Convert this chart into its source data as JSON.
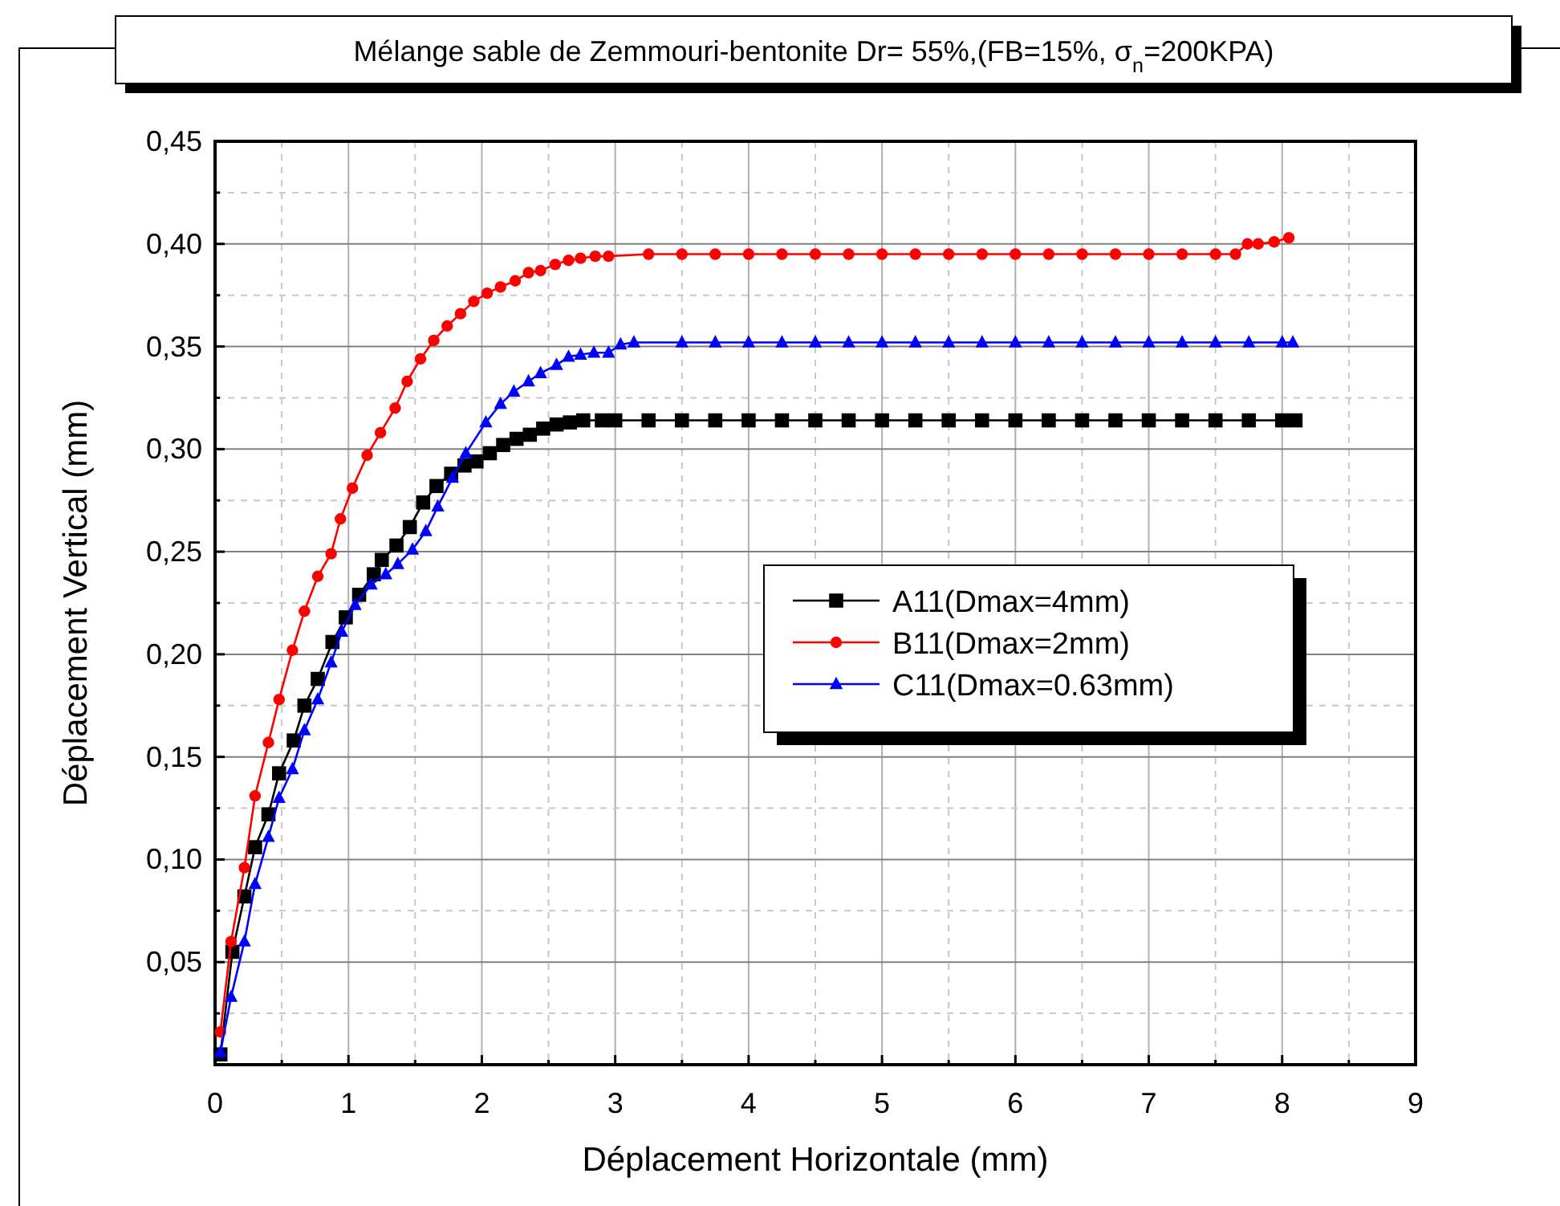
{
  "chart_data": {
    "type": "line",
    "title": "Mélange sable de Zemmouri-bentonite Dr= 55%,(FB=15%, σ$_{n}$=200KPA)",
    "xlabel": "Déplacement Horizontale (mm)",
    "ylabel": "Déplacement Vertical (mm)",
    "xlim": [
      0,
      9
    ],
    "ylim": [
      0,
      0.45
    ],
    "xticks": [
      0,
      {
        "value": 0.5,
        "label": null
      },
      1,
      {
        "value": 1.5,
        "label": null
      },
      2,
      {
        "value": 2.5,
        "label": null
      },
      3,
      {
        "value": 3.5,
        "label": null
      },
      4,
      {
        "value": 4.5,
        "label": null
      },
      5,
      {
        "value": 5.5,
        "label": null
      },
      6,
      {
        "value": 6.5,
        "label": null
      },
      7,
      {
        "value": 7.5,
        "label": null
      },
      8,
      {
        "value": 8.5,
        "label": null
      },
      9
    ],
    "yticks": [
      {
        "value": 0.025,
        "label": null
      },
      {
        "value": 0.05,
        "label": "0,05"
      },
      {
        "value": 0.075,
        "label": null
      },
      {
        "value": 0.1,
        "label": "0,10"
      },
      {
        "value": 0.125,
        "label": null
      },
      {
        "value": 0.15,
        "label": "0,15"
      },
      {
        "value": 0.175,
        "label": null
      },
      {
        "value": 0.2,
        "label": "0,20"
      },
      {
        "value": 0.225,
        "label": null
      },
      {
        "value": 0.25,
        "label": "0,25"
      },
      {
        "value": 0.275,
        "label": null
      },
      {
        "value": 0.3,
        "label": "0,30"
      },
      {
        "value": 0.325,
        "label": null
      },
      {
        "value": 0.35,
        "label": "0,35"
      },
      {
        "value": 0.375,
        "label": null
      },
      {
        "value": 0.4,
        "label": "0,40"
      },
      {
        "value": 0.425,
        "label": null
      },
      {
        "value": 0.45,
        "label": "0,45"
      }
    ],
    "grid": true,
    "legend": "right",
    "line_style": "solid",
    "series": [
      {
        "name": "A11(Dmax=4mm)",
        "color": "#000000",
        "marker": "square",
        "x": [
          0.04,
          0.13,
          0.22,
          0.3,
          0.4,
          0.48,
          0.59,
          0.67,
          0.77,
          0.88,
          0.98,
          1.08,
          1.19,
          1.25,
          1.36,
          1.46,
          1.56,
          1.66,
          1.77,
          1.87,
          1.96,
          2.06,
          2.16,
          2.26,
          2.36,
          2.46,
          2.56,
          2.66,
          2.76,
          2.9,
          3.0,
          3.25,
          3.5,
          3.75,
          4.0,
          4.25,
          4.5,
          4.75,
          5.0,
          5.25,
          5.5,
          5.75,
          6.0,
          6.25,
          6.5,
          6.75,
          7.0,
          7.25,
          7.5,
          7.75,
          8.0,
          8.1
        ],
        "values": [
          0.005,
          0.055,
          0.082,
          0.106,
          0.122,
          0.142,
          0.158,
          0.175,
          0.188,
          0.206,
          0.218,
          0.229,
          0.239,
          0.246,
          0.253,
          0.262,
          0.274,
          0.282,
          0.288,
          0.292,
          0.294,
          0.298,
          0.302,
          0.305,
          0.307,
          0.31,
          0.312,
          0.313,
          0.314,
          0.314,
          0.314,
          0.314,
          0.314,
          0.314,
          0.314,
          0.314,
          0.314,
          0.314,
          0.314,
          0.314,
          0.314,
          0.314,
          0.314,
          0.314,
          0.314,
          0.314,
          0.314,
          0.314,
          0.314,
          0.314,
          0.314,
          0.314
        ]
      },
      {
        "name": "B11(Dmax=2mm)",
        "color": "#ff0000",
        "marker": "circle",
        "x": [
          0.04,
          0.12,
          0.22,
          0.3,
          0.4,
          0.48,
          0.58,
          0.67,
          0.77,
          0.87,
          0.94,
          1.03,
          1.14,
          1.24,
          1.35,
          1.44,
          1.54,
          1.64,
          1.74,
          1.84,
          1.94,
          2.04,
          2.14,
          2.25,
          2.35,
          2.44,
          2.55,
          2.65,
          2.74,
          2.85,
          2.95,
          3.25,
          3.5,
          3.75,
          4.0,
          4.25,
          4.5,
          4.75,
          5.0,
          5.25,
          5.5,
          5.75,
          6.0,
          6.25,
          6.5,
          6.75,
          7.0,
          7.25,
          7.5,
          7.65,
          7.74,
          7.82,
          7.94,
          8.05
        ],
        "values": [
          0.016,
          0.06,
          0.096,
          0.131,
          0.157,
          0.178,
          0.202,
          0.221,
          0.238,
          0.249,
          0.266,
          0.281,
          0.297,
          0.308,
          0.32,
          0.333,
          0.344,
          0.353,
          0.36,
          0.366,
          0.372,
          0.376,
          0.379,
          0.382,
          0.386,
          0.387,
          0.39,
          0.392,
          0.393,
          0.394,
          0.394,
          0.395,
          0.395,
          0.395,
          0.395,
          0.395,
          0.395,
          0.395,
          0.395,
          0.395,
          0.395,
          0.395,
          0.395,
          0.395,
          0.395,
          0.395,
          0.395,
          0.395,
          0.395,
          0.395,
          0.4,
          0.4,
          0.401,
          0.403
        ]
      },
      {
        "name": "C11(Dmax=0.63mm)",
        "color": "#0000ff",
        "marker": "triangle",
        "x": [
          0.04,
          0.12,
          0.22,
          0.3,
          0.4,
          0.48,
          0.58,
          0.67,
          0.77,
          0.87,
          0.95,
          1.05,
          1.17,
          1.28,
          1.37,
          1.48,
          1.58,
          1.67,
          1.78,
          1.88,
          2.03,
          2.14,
          2.24,
          2.35,
          2.44,
          2.56,
          2.65,
          2.74,
          2.84,
          2.95,
          3.04,
          3.14,
          3.5,
          3.75,
          4.0,
          4.25,
          4.5,
          4.75,
          5.0,
          5.25,
          5.5,
          5.75,
          6.0,
          6.25,
          6.5,
          6.75,
          7.0,
          7.25,
          7.5,
          7.75,
          8.0,
          8.08
        ],
        "values": [
          0.006,
          0.033,
          0.06,
          0.088,
          0.111,
          0.13,
          0.144,
          0.163,
          0.178,
          0.196,
          0.211,
          0.224,
          0.234,
          0.239,
          0.244,
          0.251,
          0.26,
          0.272,
          0.286,
          0.298,
          0.313,
          0.322,
          0.328,
          0.333,
          0.337,
          0.341,
          0.345,
          0.346,
          0.347,
          0.347,
          0.351,
          0.352,
          0.352,
          0.352,
          0.352,
          0.352,
          0.352,
          0.352,
          0.352,
          0.352,
          0.352,
          0.352,
          0.352,
          0.352,
          0.352,
          0.352,
          0.352,
          0.352,
          0.352,
          0.352,
          0.352,
          0.352
        ]
      }
    ]
  }
}
